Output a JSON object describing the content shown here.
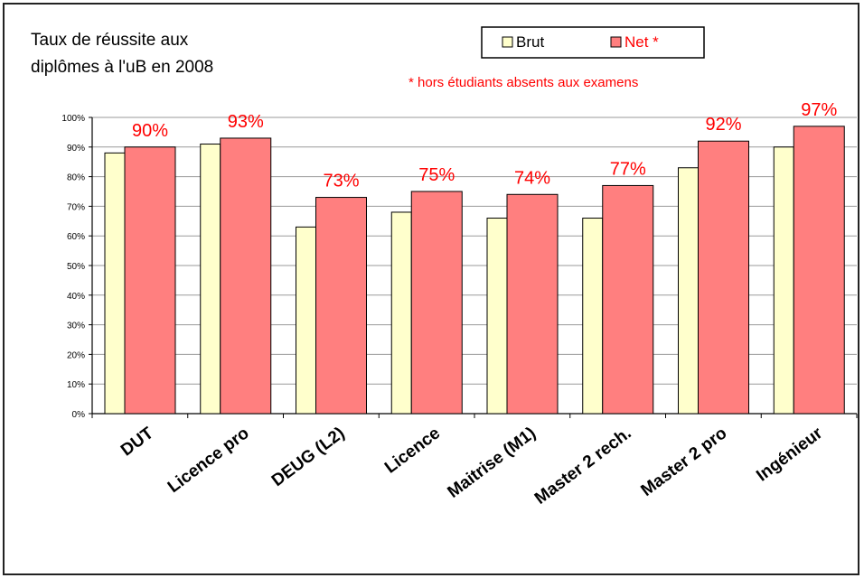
{
  "chart_data": {
    "type": "bar",
    "title_lines": [
      "Taux de réussite aux",
      "diplômes à l'uB en 2008"
    ],
    "note": "* hors étudiants absents aux examens",
    "categories": [
      "DUT",
      "Licence pro",
      "DEUG (L2)",
      "Licence",
      "Maitrise (M1)",
      "Master 2 rech.",
      "Master 2 pro",
      "Ingénieur"
    ],
    "series": [
      {
        "name": "Brut",
        "color": "#ffffcc",
        "values": [
          88,
          91,
          63,
          68,
          66,
          66,
          83,
          90
        ]
      },
      {
        "name": "Net *",
        "color": "#ff7f7f",
        "values": [
          90,
          93,
          73,
          75,
          74,
          77,
          92,
          97
        ]
      }
    ],
    "data_labels": [
      "90%",
      "93%",
      "73%",
      "75%",
      "74%",
      "77%",
      "92%",
      "97%"
    ],
    "ylim": [
      0,
      100
    ],
    "y_ticks": [
      "0%",
      "10%",
      "20%",
      "30%",
      "40%",
      "50%",
      "60%",
      "70%",
      "80%",
      "90%",
      "100%"
    ],
    "grid": true,
    "legend_position": "top-right",
    "label_color": "#ff0000"
  }
}
